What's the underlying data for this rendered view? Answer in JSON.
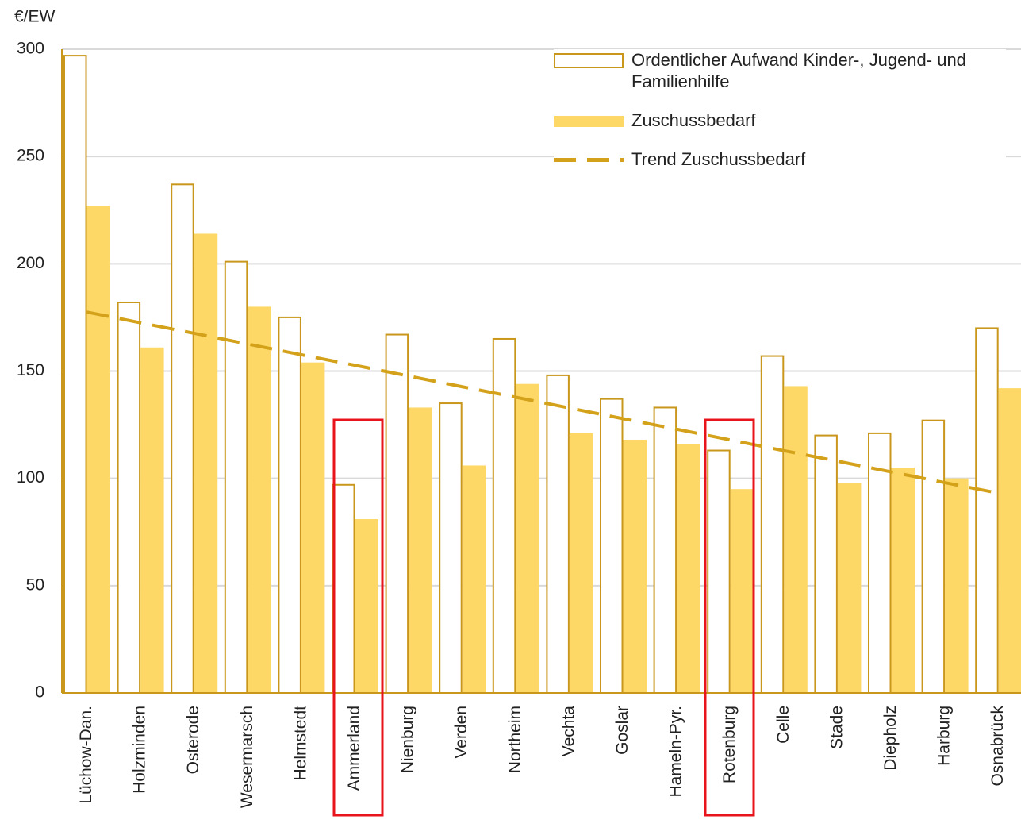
{
  "chart_data": {
    "type": "bar",
    "y_label": "€/EW",
    "categories": [
      "Lüchow-Dan.",
      "Holzminden",
      "Osterode",
      "Wesermarsch",
      "Helmstedt",
      "Ammerland",
      "Nienburg",
      "Verden",
      "Northeim",
      "Vechta",
      "Goslar",
      "Hameln-Pyr.",
      "Rotenburg",
      "Celle",
      "Stade",
      "Diepholz",
      "Harburg",
      "Osnabrück"
    ],
    "series": [
      {
        "name": "Ordentlicher Aufwand  Kinder-, Jugend- und Familienhilfe",
        "color": "#c9971c",
        "style": "outline",
        "values": [
          297,
          182,
          237,
          201,
          175,
          97,
          167,
          135,
          165,
          148,
          137,
          133,
          113,
          157,
          120,
          121,
          127,
          170
        ]
      },
      {
        "name": "Zuschussbedarf",
        "color": "#fdd867",
        "style": "fill",
        "values": [
          227,
          161,
          214,
          180,
          154,
          81,
          133,
          106,
          144,
          121,
          118,
          116,
          95,
          143,
          98,
          105,
          100,
          142
        ]
      },
      {
        "name": "Trend Zuschussbedarf",
        "color": "#d4a21a",
        "style": "dashed-line",
        "values": [
          177.5,
          172.5,
          167.6,
          162.6,
          157.6,
          152.7,
          147.7,
          142.7,
          137.8,
          132.8,
          127.8,
          122.9,
          117.9,
          112.9,
          108,
          103,
          98,
          93.1
        ]
      }
    ],
    "ylim": [
      0,
      300
    ],
    "yticks": [
      0,
      50,
      100,
      150,
      200,
      250,
      300
    ],
    "grid": true
  }
}
